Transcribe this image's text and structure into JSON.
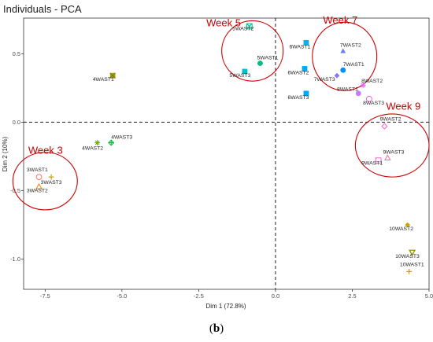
{
  "caption": {
    "open": "(",
    "letter": "b",
    "close": ")"
  },
  "chart_data": {
    "type": "scatter",
    "title": "Individuals - PCA",
    "xlabel": "Dim 1 (72.8%)",
    "ylabel": "Dim 2 (10%)",
    "xlim": [
      -8.2,
      5.0
    ],
    "ylim": [
      -1.22,
      0.76
    ],
    "xticks": [
      -7.5,
      -5.0,
      -2.5,
      0.0,
      2.5,
      5.0
    ],
    "xtick_labels": [
      "-7.5",
      "-5.0",
      "-2.5",
      "0.0",
      "2.5",
      "5.0"
    ],
    "yticks": [
      -1.0,
      -0.5,
      0.0,
      0.5
    ],
    "ytick_labels": [
      "-1.0",
      "-0.5",
      "0.0",
      "0.5"
    ],
    "grid": false,
    "points": [
      {
        "label": "3WAST1",
        "x": -7.7,
        "y": -0.4,
        "color": "#f8766d",
        "shape": "circle-open",
        "lx": -8.1,
        "ly": -0.36,
        "anchor": "start"
      },
      {
        "label": "3WAST2",
        "x": -7.7,
        "y": -0.47,
        "color": "#e58700",
        "shape": "triangle-open",
        "lx": -8.1,
        "ly": -0.51,
        "anchor": "start"
      },
      {
        "label": "3WAST3",
        "x": -7.3,
        "y": -0.4,
        "color": "#c99800",
        "shape": "plus",
        "lx": -7.3,
        "ly": -0.45,
        "anchor": "middle"
      },
      {
        "label": "4WAST1",
        "x": -5.3,
        "y": 0.34,
        "color": "#a3a500",
        "shape": "square-x",
        "lx": -5.95,
        "ly": 0.3,
        "anchor": "start"
      },
      {
        "label": "4WAST2",
        "x": -5.8,
        "y": -0.15,
        "color": "#6bb100",
        "shape": "asterisk",
        "lx": -6.3,
        "ly": -0.2,
        "anchor": "start"
      },
      {
        "label": "4WAST3",
        "x": -5.35,
        "y": -0.15,
        "color": "#00ba38",
        "shape": "diamond-plus",
        "lx": -5.35,
        "ly": -0.12,
        "anchor": "start"
      },
      {
        "label": "5WAST1",
        "x": -0.5,
        "y": 0.43,
        "color": "#00bf7d",
        "shape": "circle-plus",
        "lx": -0.6,
        "ly": 0.46,
        "anchor": "start"
      },
      {
        "label": "5WAST2",
        "x": -0.85,
        "y": 0.7,
        "color": "#00c08b",
        "shape": "square-cross",
        "lx": -1.4,
        "ly": 0.67,
        "anchor": "start"
      },
      {
        "label": "5WAST3",
        "x": -1.0,
        "y": 0.37,
        "color": "#00bfc4",
        "shape": "square-filled",
        "lx": -1.5,
        "ly": 0.33,
        "anchor": "start"
      },
      {
        "label": "6WAST1",
        "x": 1.0,
        "y": 0.58,
        "color": "#00b4f0",
        "shape": "square-filled",
        "lx": 0.45,
        "ly": 0.54,
        "anchor": "start"
      },
      {
        "label": "6WAST2",
        "x": 0.95,
        "y": 0.39,
        "color": "#00a9ff",
        "shape": "square-filled",
        "lx": 0.4,
        "ly": 0.35,
        "anchor": "start"
      },
      {
        "label": "6WAST3",
        "x": 1.0,
        "y": 0.21,
        "color": "#00a9ff",
        "shape": "square-filled",
        "lx": 0.4,
        "ly": 0.17,
        "anchor": "start"
      },
      {
        "label": "7WAST1",
        "x": 2.2,
        "y": 0.38,
        "color": "#0090ff",
        "shape": "circle-filled",
        "lx": 2.2,
        "ly": 0.41,
        "anchor": "start"
      },
      {
        "label": "7WAST2",
        "x": 2.2,
        "y": 0.52,
        "color": "#6a7dff",
        "shape": "triangle-filled",
        "lx": 2.1,
        "ly": 0.55,
        "anchor": "start"
      },
      {
        "label": "7WAST3",
        "x": 2.0,
        "y": 0.34,
        "color": "#8b73ff",
        "shape": "diamond-filled",
        "lx": 1.25,
        "ly": 0.3,
        "anchor": "start"
      },
      {
        "label": "8WAST1",
        "x": 2.7,
        "y": 0.21,
        "color": "#c77cff",
        "shape": "circle-filled",
        "lx": 2.0,
        "ly": 0.23,
        "anchor": "start"
      },
      {
        "label": "8WAST2",
        "x": 2.85,
        "y": 0.27,
        "color": "#e76bf3",
        "shape": "asterisk",
        "lx": 2.8,
        "ly": 0.29,
        "anchor": "start"
      },
      {
        "label": "8WAST3",
        "x": 3.05,
        "y": 0.17,
        "color": "#f564e3",
        "shape": "circle-open",
        "lx": 2.85,
        "ly": 0.13,
        "anchor": "start"
      },
      {
        "label": "9WAST1",
        "x": 3.35,
        "y": -0.28,
        "color": "#fd61d1",
        "shape": "square-open",
        "lx": 2.8,
        "ly": -0.31,
        "anchor": "start"
      },
      {
        "label": "9WAST2",
        "x": 3.55,
        "y": -0.03,
        "color": "#ff62bc",
        "shape": "diamond-open",
        "lx": 3.4,
        "ly": 0.01,
        "anchor": "start"
      },
      {
        "label": "9WAST3",
        "x": 3.65,
        "y": -0.26,
        "color": "#ff6c91",
        "shape": "triangle-open",
        "lx": 3.5,
        "ly": -0.23,
        "anchor": "start"
      },
      {
        "label": "10WAST1",
        "x": 4.35,
        "y": -1.09,
        "color": "#d89000",
        "shape": "plus",
        "lx": 4.05,
        "ly": -1.05,
        "anchor": "start"
      },
      {
        "label": "10WAST2",
        "x": 4.3,
        "y": -0.75,
        "color": "#c9a400",
        "shape": "diamond-filled",
        "lx": 3.7,
        "ly": -0.79,
        "anchor": "start"
      },
      {
        "label": "10WAST3",
        "x": 4.45,
        "y": -0.95,
        "color": "#8f8f00",
        "shape": "triangle-down",
        "lx": 3.9,
        "ly": -0.99,
        "anchor": "start"
      }
    ],
    "annotations": [
      {
        "text": "Week 3",
        "cx": -7.5,
        "cy": -0.43,
        "rx": 1.05,
        "ry": 0.21,
        "tx": -8.05,
        "ty": -0.23
      },
      {
        "text": "Week 5",
        "cx": -0.75,
        "cy": 0.52,
        "rx": 1.0,
        "ry": 0.22,
        "tx": -2.25,
        "ty": 0.7
      },
      {
        "text": "Week 7",
        "cx": 2.25,
        "cy": 0.48,
        "rx": 1.05,
        "ry": 0.25,
        "tx": 1.55,
        "ty": 0.72
      },
      {
        "text": "Week 9",
        "cx": 3.8,
        "cy": -0.17,
        "rx": 1.2,
        "ry": 0.23,
        "tx": 3.6,
        "ty": 0.09
      }
    ]
  }
}
